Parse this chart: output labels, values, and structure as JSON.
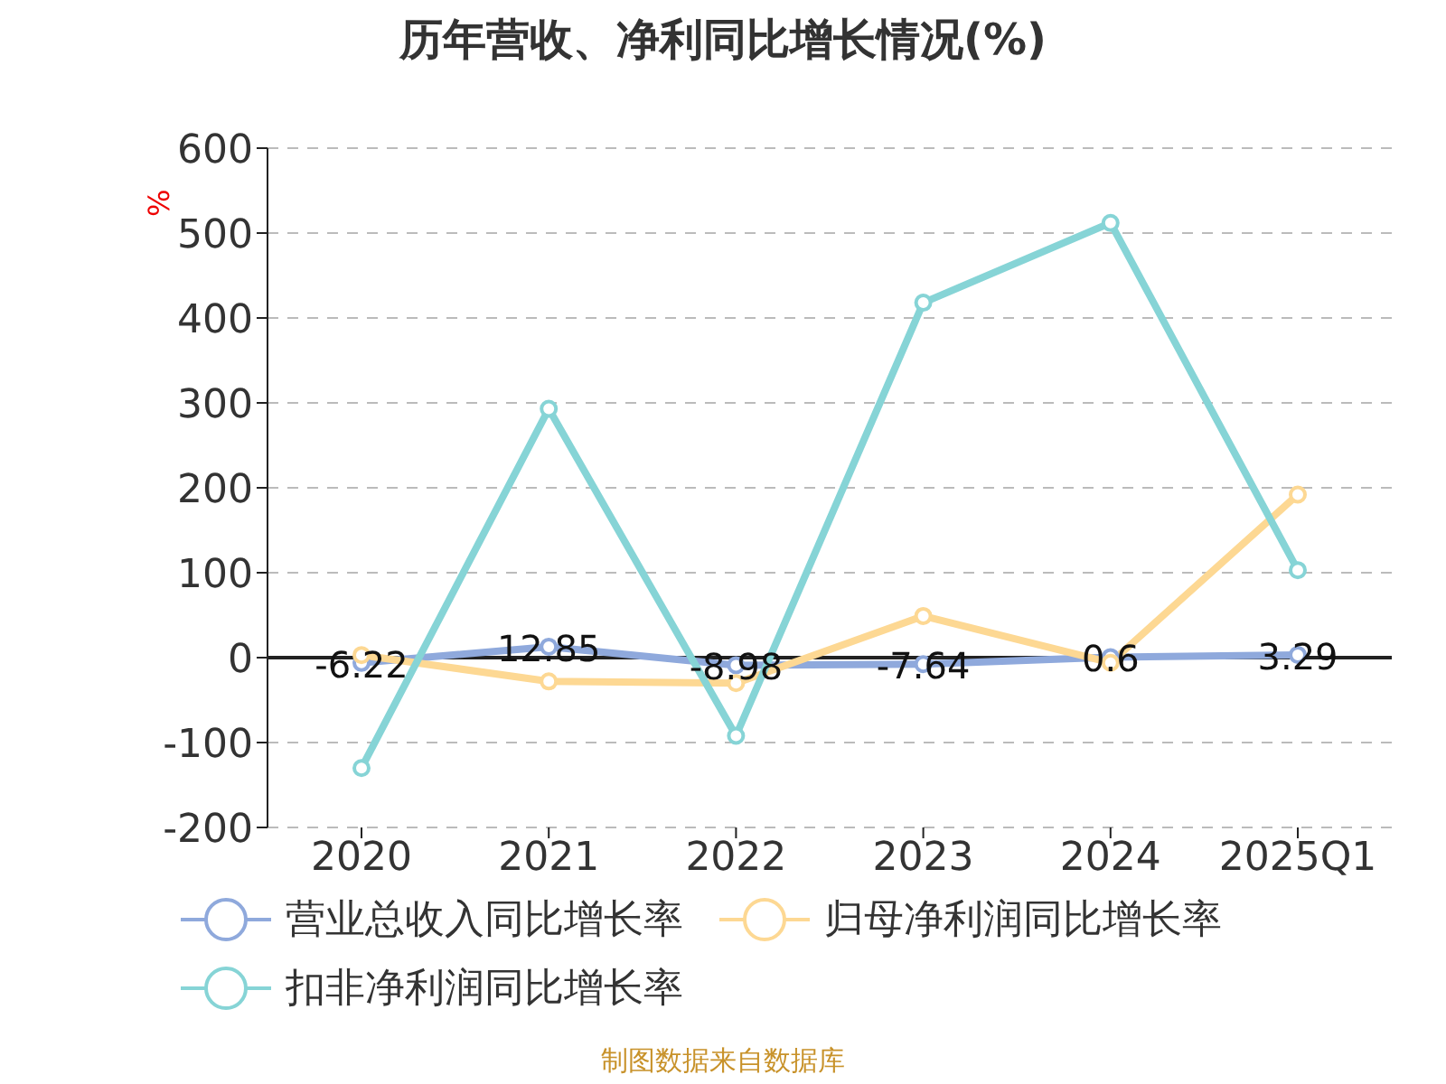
{
  "chart_data": {
    "type": "line",
    "title": "历年营收、净利同比增长情况(%)",
    "ylabel": "%",
    "categories": [
      "2020",
      "2021",
      "2022",
      "2023",
      "2024",
      "2025Q1"
    ],
    "series": [
      {
        "name": "营业总收入同比增长率",
        "color": "#8fa9dc",
        "values": [
          -6.22,
          12.85,
          -8.98,
          -7.64,
          0.6,
          3.29
        ],
        "value_labels": [
          "-6.22",
          "12.85",
          "-8.98",
          "-7.64",
          "0.6",
          "3.29"
        ]
      },
      {
        "name": "归母净利润同比增长率",
        "color": "#fdd893",
        "values": [
          3,
          -28,
          -30,
          49,
          -6,
          192
        ]
      },
      {
        "name": "扣非净利润同比增长率",
        "color": "#86d4d6",
        "values": [
          -130,
          293,
          -92,
          418,
          512,
          103
        ]
      }
    ],
    "ylim": [
      -200,
      600
    ],
    "yticks": [
      -200,
      -100,
      0,
      100,
      200,
      300,
      400,
      500,
      600
    ],
    "grid": "y",
    "legend": "bottom",
    "marker": "circle",
    "line_style": "solid",
    "annotations": [
      "制图数据来自数据库"
    ]
  }
}
